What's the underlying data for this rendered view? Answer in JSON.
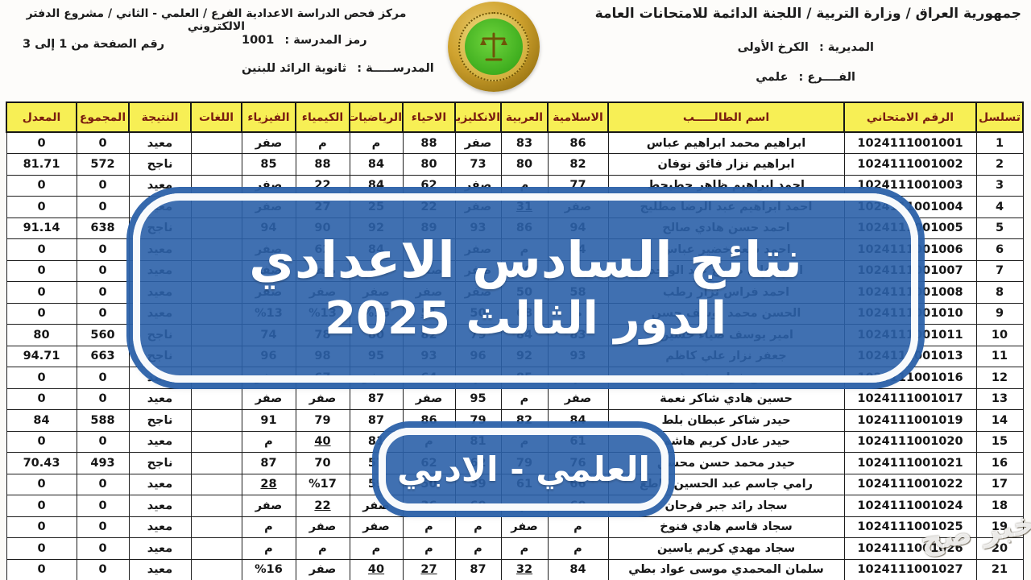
{
  "header": {
    "org_title": "جمهورية العراق / وزارة التربية / اللجنة الدائمة للامتحانات العامة",
    "directorate_label": "المديرية :",
    "directorate_value": "الكرخ الأولى",
    "branch_label": "الفــــرع :",
    "branch_value": "علمي",
    "center_title": "مركز فحص الدراسة الاعدادية الفرع / العلمي - الثاني / مشروع الدفتر الالكتروني",
    "school_code_label": "رمز المدرسة :",
    "school_code_value": "1001",
    "page_range": "رقم الصفحة من 1 إلى 3",
    "school_label": "المدرســـــة :",
    "school_value": "ثانوية الرائد للبنين"
  },
  "logo": {
    "name": "ministry-of-education-emblem"
  },
  "banner_main": {
    "line1": "نتائج السادس الاعدادي",
    "line2": "الدور الثالث 2025",
    "color": "#2b61a9"
  },
  "banner_branch": {
    "text": "العلمي - الادبي"
  },
  "watermark": {
    "text": "خبر صح"
  },
  "colors": {
    "header_bg": "#f7ef55",
    "header_text": "#7a1d10",
    "banner_blue": "#2b61a9",
    "grid": "#1d1d1d"
  },
  "table": {
    "columns": [
      "تسلسل",
      "الرقم الامتحاني",
      "اسم الطالـــــب",
      "الاسلامية",
      "العربية",
      "الانكليزية",
      "الاحياء",
      "الرياضيات",
      "الكيمياء",
      "الفيزياء",
      "اللغات",
      "النتيجة",
      "المجموع",
      "المعدل"
    ],
    "rows": [
      [
        "1",
        "1024111001001",
        "ابراهيم محمد ابراهيم عباس",
        "86",
        "83",
        "صفر",
        "88",
        "م",
        "م",
        "صفر",
        "",
        "معيد",
        "0",
        "0"
      ],
      [
        "2",
        "1024111001002",
        "ابراهيم نزار فائق نوفان",
        "82",
        "80",
        "73",
        "80",
        "84",
        "88",
        "85",
        "",
        "ناجح",
        "572",
        "81.71"
      ],
      [
        "3",
        "1024111001003",
        "احمد ابراهيم ظاهر حطيحط",
        "77",
        "م",
        "صفر",
        "62",
        "84",
        "22",
        "صفر",
        "",
        "معيد",
        "0",
        "0"
      ],
      [
        "4",
        "1024111001004",
        "احمد ابراهيم عبد الرضا مطليج",
        "صفر",
        "_31",
        "صفر",
        "22",
        "25",
        "27",
        "صفر",
        "",
        "معيد",
        "0",
        "0"
      ],
      [
        "5",
        "1024111001005",
        "احمد حسن هادي صالح",
        "94",
        "86",
        "93",
        "89",
        "92",
        "90",
        "94",
        "",
        "ناجح",
        "638",
        "91.14"
      ],
      [
        "6",
        "1024111001006",
        "احمد سعد خضير عباس",
        "64",
        "م",
        "صفر",
        "م",
        "84",
        "62",
        "صفر",
        "",
        "معيد",
        "0",
        "0"
      ],
      [
        "7",
        "1024111001007",
        "احمد علي صبوح عبد الواحد",
        "م",
        "50",
        "صفر",
        "صفر",
        "صفر",
        "صفر",
        "صفر",
        "",
        "معيد",
        "0",
        "0"
      ],
      [
        "8",
        "1024111001008",
        "احمد فراس نزار رطب",
        "58",
        "50",
        "صفر",
        "صفر",
        "صفر",
        "صفر",
        "صفر",
        "",
        "معيد",
        "0",
        "0"
      ],
      [
        "9",
        "1024111001010",
        "الحسن محمد يوسف حسن",
        "م",
        "68",
        "50",
        "_51",
        "%15",
        "%13",
        "%13",
        "",
        "معيد",
        "0",
        "0"
      ],
      [
        "10",
        "1024111001011",
        "امير يوسف ضياء حسين",
        "83",
        "84",
        "79",
        "82",
        "80",
        "78",
        "74",
        "",
        "ناجح",
        "560",
        "80"
      ],
      [
        "11",
        "1024111001013",
        "جعفر نزار علي كاظم",
        "93",
        "92",
        "96",
        "93",
        "95",
        "98",
        "96",
        "",
        "ناجح",
        "663",
        "94.71"
      ],
      [
        "12",
        "1024111001016",
        "حسين فرات عبد غند",
        "م",
        "85",
        "م",
        "64",
        "صفر",
        "67",
        "صفر",
        "",
        "معيد",
        "0",
        "0"
      ],
      [
        "13",
        "1024111001017",
        "حسين هادي شاكر نعمة",
        "صفر",
        "م",
        "95",
        "صفر",
        "87",
        "صفر",
        "صفر",
        "",
        "معيد",
        "0",
        "0"
      ],
      [
        "14",
        "1024111001019",
        "حيدر شاكر عبطان بلط",
        "84",
        "82",
        "79",
        "86",
        "87",
        "79",
        "91",
        "",
        "ناجح",
        "588",
        "84"
      ],
      [
        "15",
        "1024111001020",
        "حيدر عادل كريم هاشم",
        "61",
        "م",
        "81",
        "م",
        "81",
        "_40",
        "م",
        "",
        "معيد",
        "0",
        "0"
      ],
      [
        "16",
        "1024111001021",
        "حيدر محمد حسن محسن",
        "76",
        "79",
        "62",
        "62",
        "57",
        "70",
        "87",
        "",
        "ناجح",
        "493",
        "70.43"
      ],
      [
        "17",
        "1024111001022",
        "رامي جاسم عبد الحسين كاطع",
        "66",
        "61",
        "39",
        "50",
        "59",
        "%17",
        "_28",
        "",
        "معيد",
        "0",
        "0"
      ],
      [
        "18",
        "1024111001024",
        "سجاد رائد جبر فرحان",
        "60",
        "م",
        "60",
        "36",
        "صفر",
        "_22",
        "صفر",
        "",
        "معيد",
        "0",
        "0"
      ],
      [
        "19",
        "1024111001025",
        "سجاد قاسم هادي فنوخ",
        "م",
        "صفر",
        "م",
        "م",
        "صفر",
        "صفر",
        "م",
        "",
        "معيد",
        "0",
        "0"
      ],
      [
        "20",
        "1024111001026",
        "سجاد مهدي كريم ياسين",
        "م",
        "م",
        "م",
        "م",
        "م",
        "م",
        "م",
        "",
        "معيد",
        "0",
        "0"
      ],
      [
        "21",
        "1024111001027",
        "سلمان المحمدي موسى عواد بطي",
        "84",
        "_32",
        "87",
        "_27",
        "_40",
        "صفر",
        "%16",
        "",
        "معيد",
        "0",
        "0"
      ]
    ]
  }
}
